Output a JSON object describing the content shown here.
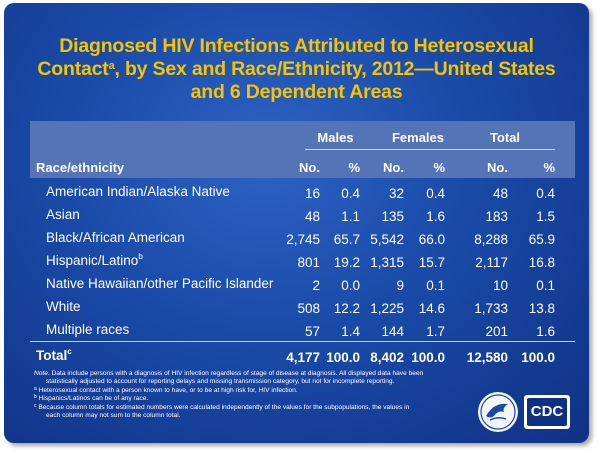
{
  "title": {
    "line1": "Diagnosed HIV Infections Attributed to Heterosexual",
    "line2_pre": "Contact",
    "line2_sup": "a",
    "line2_post": ", by Sex and Race/Ethnicity, 2012—United States",
    "line3": "and 6 Dependent Areas"
  },
  "table": {
    "group_headers": [
      "Males",
      "Females",
      "Total"
    ],
    "row_header": "Race/ethnicity",
    "sub_headers": [
      "No.",
      "%",
      "No.",
      "%",
      "No.",
      "%"
    ],
    "rows": [
      {
        "label": "American Indian/Alaska Native",
        "sup": "",
        "cells": [
          "16",
          "0.4",
          "32",
          "0.4",
          "48",
          "0.4"
        ]
      },
      {
        "label": "Asian",
        "sup": "",
        "cells": [
          "48",
          "1.1",
          "135",
          "1.6",
          "183",
          "1.5"
        ]
      },
      {
        "label": "Black/African American",
        "sup": "",
        "cells": [
          "2,745",
          "65.7",
          "5,542",
          "66.0",
          "8,288",
          "65.9"
        ]
      },
      {
        "label": "Hispanic/Latino",
        "sup": "b",
        "cells": [
          "801",
          "19.2",
          "1,315",
          "15.7",
          "2,117",
          "16.8"
        ]
      },
      {
        "label": "Native Hawaiian/other Pacific Islander",
        "sup": "",
        "cells": [
          "2",
          "0.0",
          "9",
          "0.1",
          "10",
          "0.1"
        ]
      },
      {
        "label": "White",
        "sup": "",
        "cells": [
          "508",
          "12.2",
          "1,225",
          "14.6",
          "1,733",
          "13.8"
        ]
      },
      {
        "label": "Multiple races",
        "sup": "",
        "cells": [
          "57",
          "1.4",
          "144",
          "1.7",
          "201",
          "1.6"
        ]
      }
    ],
    "total": {
      "label": "Total",
      "sup": "c",
      "cells": [
        "4,177",
        "100.0",
        "8,402",
        "100.0",
        "12,580",
        "100.0"
      ]
    }
  },
  "notes": {
    "note_label": "Note.",
    "note_text": " Data include persons with a diagnosis of HIV infection regardless of stage of disease at diagnosis. All displayed data have been",
    "note_text2": "statistically adjusted to account for reporting delays and missing transmission category, but not for incomplete reporting.",
    "a": "Heterosexual contact with a person known to have, or to be at high risk for, HIV infection.",
    "b": "Hispanics/Latinos can be of any race.",
    "c": "Because column totals for estimated numbers were calculated independently of the values for the subpopulations, the values in",
    "c2": "each column may not sum to the column total."
  },
  "logo": {
    "text": "CDC"
  },
  "colors": {
    "title": "#f5c400",
    "background": "#1a4aa8",
    "header_band": "#5574b8",
    "text": "#ffffff"
  }
}
